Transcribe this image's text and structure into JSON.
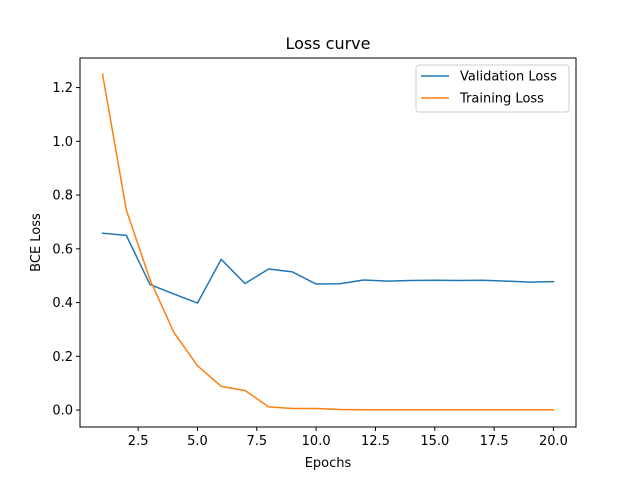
{
  "chart_data": {
    "type": "line",
    "title": "Loss curve",
    "xlabel": "Epochs",
    "ylabel": "BCE Loss",
    "xlim": [
      0.05,
      20.95
    ],
    "ylim": [
      -0.063,
      1.31
    ],
    "xticks": [
      2.5,
      5.0,
      7.5,
      10.0,
      12.5,
      15.0,
      17.5,
      20.0
    ],
    "xtick_labels": [
      "2.5",
      "5.0",
      "7.5",
      "10.0",
      "12.5",
      "15.0",
      "17.5",
      "20.0"
    ],
    "yticks": [
      0.0,
      0.2,
      0.4,
      0.6,
      0.8,
      1.0,
      1.2
    ],
    "ytick_labels": [
      "0.0",
      "0.2",
      "0.4",
      "0.6",
      "0.8",
      "1.0",
      "1.2"
    ],
    "grid": false,
    "legend_position": "top-right",
    "x": [
      1,
      2,
      3,
      4,
      5,
      6,
      7,
      8,
      9,
      10,
      11,
      12,
      13,
      14,
      15,
      16,
      17,
      18,
      19,
      20
    ],
    "series": [
      {
        "name": "Validation Loss",
        "color": "#1f77b4",
        "values": [
          0.658,
          0.65,
          0.467,
          0.432,
          0.398,
          0.561,
          0.471,
          0.525,
          0.514,
          0.469,
          0.47,
          0.484,
          0.48,
          0.482,
          0.483,
          0.482,
          0.483,
          0.48,
          0.476,
          0.478
        ]
      },
      {
        "name": "Training Loss",
        "color": "#ff7f0e",
        "values": [
          1.25,
          0.745,
          0.485,
          0.29,
          0.165,
          0.088,
          0.073,
          0.012,
          0.006,
          0.006,
          0.002,
          0.001,
          0.001,
          0.001,
          0.001,
          0.001,
          0.001,
          0.001,
          0.001,
          0.001
        ]
      }
    ]
  }
}
